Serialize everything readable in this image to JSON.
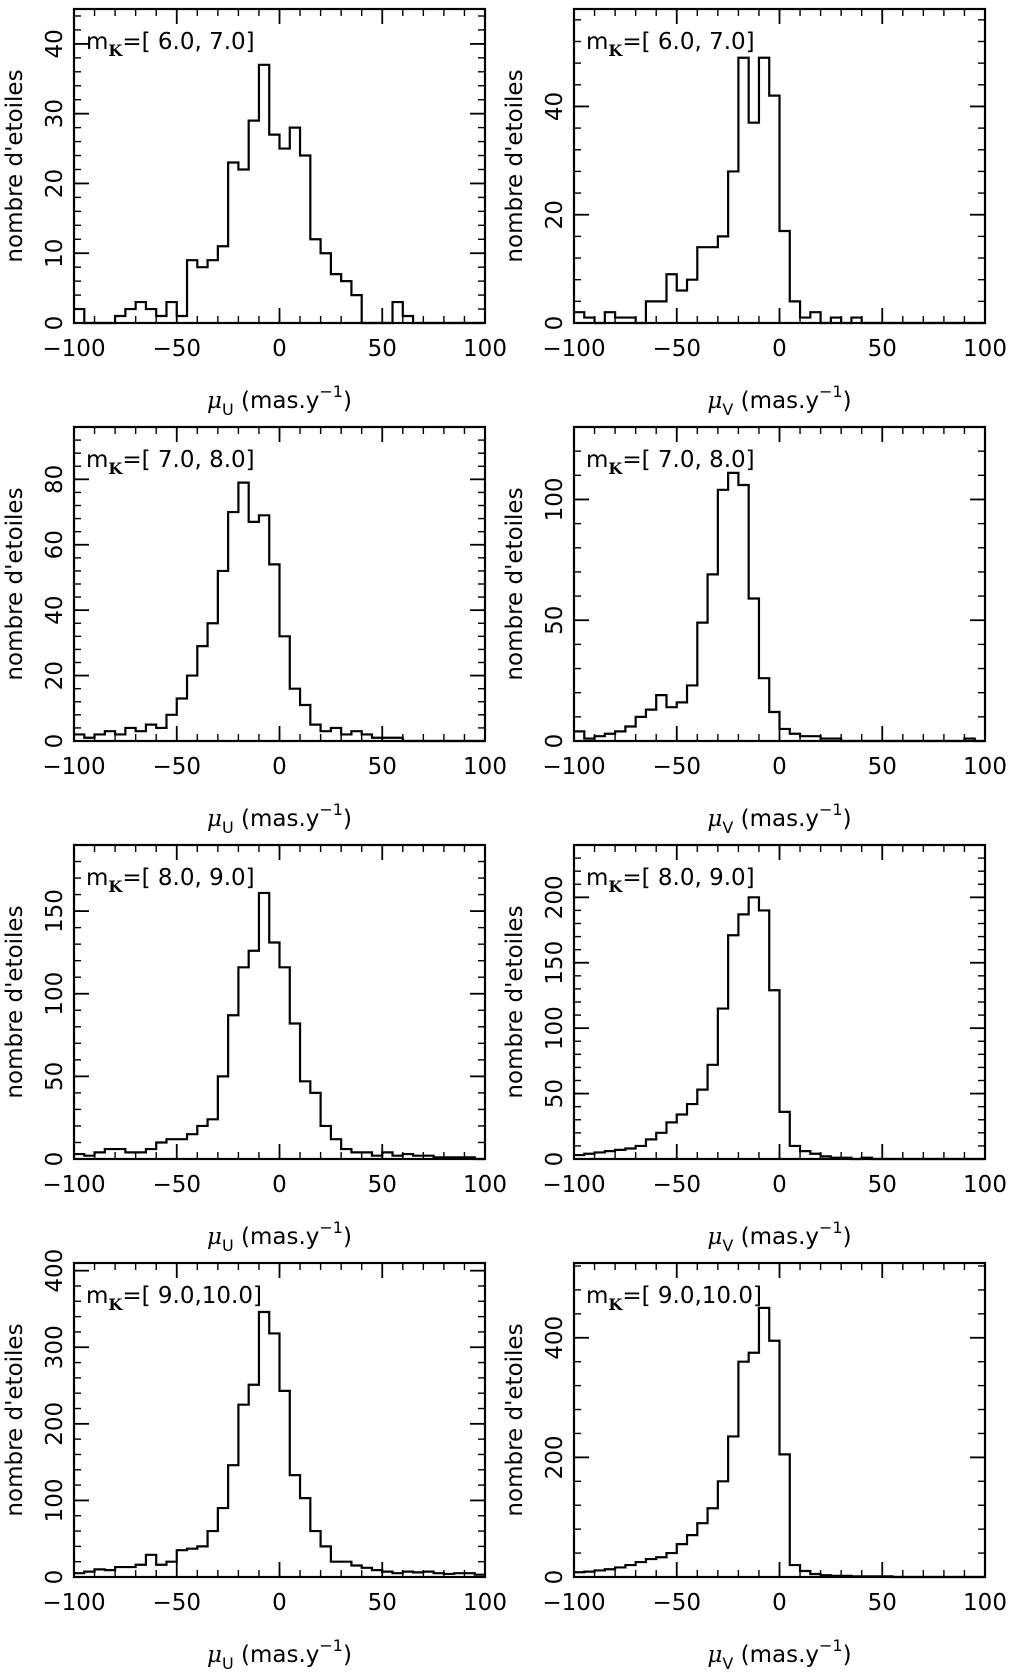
{
  "chart_data": [
    {
      "type": "histogram",
      "annotation": "m",
      "annotation_sub": "K",
      "annotation_range": "=[ 6.0, 7.0]",
      "xlabel_symbol": "μ",
      "xlabel_sub": "U",
      "xlabel_unit": " (mas.y",
      "xlabel_sup": "−1",
      "xlabel_close": ")",
      "ylabel": "nombre d'etoiles",
      "xlim": [
        -100,
        100
      ],
      "ylim": [
        0,
        45
      ],
      "xticks": [
        -100,
        -50,
        0,
        50,
        100
      ],
      "xtick_labels": [
        "−100",
        "−50",
        "0",
        "50",
        "100"
      ],
      "yticks": [
        0,
        10,
        20,
        30,
        40
      ],
      "ytick_labels": [
        "0",
        "10",
        "20",
        "30",
        "40"
      ],
      "bin_start": -100,
      "bin_width": 5,
      "values": [
        2,
        0,
        0,
        0,
        1,
        2,
        3,
        2,
        1,
        3,
        1,
        9,
        8,
        9,
        11,
        23,
        22,
        29,
        37,
        27,
        25,
        28,
        24,
        12,
        10,
        7,
        6,
        4,
        0,
        0,
        0,
        3,
        1,
        0,
        0,
        0,
        0,
        0,
        0,
        0
      ]
    },
    {
      "type": "histogram",
      "annotation": "m",
      "annotation_sub": "K",
      "annotation_range": "=[ 6.0, 7.0]",
      "xlabel_symbol": "μ",
      "xlabel_sub": "V",
      "xlabel_unit": " (mas.y",
      "xlabel_sup": "−1",
      "xlabel_close": ")",
      "ylabel": "nombre d'etoiles",
      "xlim": [
        -100,
        100
      ],
      "ylim": [
        0,
        58
      ],
      "xticks": [
        -100,
        -50,
        0,
        50,
        100
      ],
      "xtick_labels": [
        "−100",
        "−50",
        "0",
        "50",
        "100"
      ],
      "yticks": [
        0,
        20,
        40
      ],
      "ytick_labels": [
        "0",
        "20",
        "40"
      ],
      "bin_start": -100,
      "bin_width": 5,
      "values": [
        2,
        1,
        0,
        2,
        1,
        1,
        0,
        4,
        4,
        9,
        6,
        8,
        14,
        14,
        16,
        28,
        49,
        37,
        49,
        42,
        17,
        4,
        1,
        2,
        0,
        1,
        0,
        1,
        0,
        0,
        0,
        0,
        0,
        0,
        0,
        0,
        0,
        0,
        0,
        0
      ]
    },
    {
      "type": "histogram",
      "annotation": "m",
      "annotation_sub": "K",
      "annotation_range": "=[ 7.0, 8.0]",
      "xlabel_symbol": "μ",
      "xlabel_sub": "U",
      "xlabel_unit": " (mas.y",
      "xlabel_sup": "−1",
      "xlabel_close": ")",
      "ylabel": "nombre d'etoiles",
      "xlim": [
        -100,
        100
      ],
      "ylim": [
        0,
        96
      ],
      "xticks": [
        -100,
        -50,
        0,
        50,
        100
      ],
      "xtick_labels": [
        "−100",
        "−50",
        "0",
        "50",
        "100"
      ],
      "yticks": [
        0,
        20,
        40,
        60,
        80
      ],
      "ytick_labels": [
        "0",
        "20",
        "40",
        "60",
        "80"
      ],
      "bin_start": -100,
      "bin_width": 5,
      "values": [
        2,
        1,
        2,
        3,
        2,
        4,
        3,
        5,
        4,
        8,
        13,
        20,
        29,
        36,
        52,
        70,
        79,
        67,
        69,
        54,
        32,
        16,
        11,
        5,
        3,
        4,
        2,
        3,
        2,
        1,
        1,
        1,
        0,
        0,
        0,
        0,
        0,
        0,
        0,
        0
      ]
    },
    {
      "type": "histogram",
      "annotation": "m",
      "annotation_sub": "K",
      "annotation_range": "=[ 7.0, 8.0]",
      "xlabel_symbol": "μ",
      "xlabel_sub": "V",
      "xlabel_unit": " (mas.y",
      "xlabel_sup": "−1",
      "xlabel_close": ")",
      "ylabel": "nombre d'etoiles",
      "xlim": [
        -100,
        100
      ],
      "ylim": [
        0,
        130
      ],
      "xticks": [
        -100,
        -50,
        0,
        50,
        100
      ],
      "xtick_labels": [
        "−100",
        "−50",
        "0",
        "50",
        "100"
      ],
      "yticks": [
        0,
        50,
        100
      ],
      "ytick_labels": [
        "0",
        "50",
        "100"
      ],
      "bin_start": -100,
      "bin_width": 5,
      "values": [
        4,
        1,
        2,
        3,
        4,
        6,
        10,
        13,
        19,
        14,
        16,
        23,
        49,
        69,
        104,
        111,
        106,
        59,
        26,
        12,
        5,
        3,
        2,
        2,
        1,
        1,
        0,
        0,
        0,
        0,
        0,
        0,
        0,
        0,
        0,
        0,
        0,
        0,
        1,
        0
      ]
    },
    {
      "type": "histogram",
      "annotation": "m",
      "annotation_sub": "K",
      "annotation_range": "=[ 8.0, 9.0]",
      "xlabel_symbol": "μ",
      "xlabel_sub": "U",
      "xlabel_unit": " (mas.y",
      "xlabel_sup": "−1",
      "xlabel_close": ")",
      "ylabel": "nombre d'etoiles",
      "xlim": [
        -100,
        100
      ],
      "ylim": [
        0,
        190
      ],
      "xticks": [
        -100,
        -50,
        0,
        50,
        100
      ],
      "xtick_labels": [
        "−100",
        "−50",
        "0",
        "50",
        "100"
      ],
      "yticks": [
        0,
        50,
        100,
        150
      ],
      "ytick_labels": [
        "0",
        "50",
        "100",
        "150"
      ],
      "bin_start": -100,
      "bin_width": 5,
      "values": [
        3,
        2,
        4,
        6,
        6,
        4,
        4,
        6,
        10,
        12,
        12,
        15,
        20,
        24,
        50,
        87,
        116,
        126,
        161,
        131,
        116,
        82,
        47,
        40,
        20,
        12,
        6,
        4,
        4,
        2,
        4,
        2,
        3,
        2,
        2,
        1,
        1,
        1,
        1,
        0
      ]
    },
    {
      "type": "histogram",
      "annotation": "m",
      "annotation_sub": "K",
      "annotation_range": "=[ 8.0, 9.0]",
      "xlabel_symbol": "μ",
      "xlabel_sub": "V",
      "xlabel_unit": " (mas.y",
      "xlabel_sup": "−1",
      "xlabel_close": ")",
      "ylabel": "nombre d'etoiles",
      "xlim": [
        -100,
        100
      ],
      "ylim": [
        0,
        240
      ],
      "xticks": [
        -100,
        -50,
        0,
        50,
        100
      ],
      "xtick_labels": [
        "−100",
        "−50",
        "0",
        "50",
        "100"
      ],
      "yticks": [
        0,
        50,
        100,
        150,
        200
      ],
      "ytick_labels": [
        "0",
        "50",
        "100",
        "150",
        "200"
      ],
      "bin_start": -100,
      "bin_width": 5,
      "values": [
        3,
        4,
        5,
        6,
        7,
        8,
        10,
        15,
        20,
        28,
        34,
        42,
        53,
        72,
        115,
        171,
        187,
        200,
        190,
        129,
        36,
        10,
        6,
        4,
        2,
        1,
        1,
        0,
        1,
        0,
        0,
        0,
        0,
        0,
        0,
        0,
        0,
        0,
        0,
        0
      ]
    },
    {
      "type": "histogram",
      "annotation": "m",
      "annotation_sub": "K",
      "annotation_range": "=[ 9.0,10.0]",
      "xlabel_symbol": "μ",
      "xlabel_sub": "U",
      "xlabel_unit": " (mas.y",
      "xlabel_sup": "−1",
      "xlabel_close": ")",
      "ylabel": "nombre d'etoiles",
      "xlim": [
        -100,
        100
      ],
      "ylim": [
        0,
        410
      ],
      "xticks": [
        -100,
        -50,
        0,
        50,
        100
      ],
      "xtick_labels": [
        "−100",
        "−50",
        "0",
        "50",
        "100"
      ],
      "yticks": [
        0,
        100,
        200,
        300,
        400
      ],
      "ytick_labels": [
        "0",
        "100",
        "200",
        "300",
        "400"
      ],
      "bin_start": -100,
      "bin_width": 5,
      "values": [
        5,
        7,
        10,
        9,
        13,
        13,
        16,
        29,
        16,
        20,
        35,
        37,
        40,
        60,
        90,
        146,
        225,
        251,
        346,
        318,
        243,
        133,
        103,
        60,
        40,
        20,
        20,
        15,
        12,
        9,
        7,
        5,
        7,
        6,
        7,
        5,
        4,
        5,
        5,
        3
      ]
    },
    {
      "type": "histogram",
      "annotation": "m",
      "annotation_sub": "K",
      "annotation_range": "=[ 9.0,10.0]",
      "xlabel_symbol": "μ",
      "xlabel_sub": "V",
      "xlabel_unit": " (mas.y",
      "xlabel_sup": "−1",
      "xlabel_close": ")",
      "ylabel": "nombre d'etoiles",
      "xlim": [
        -100,
        100
      ],
      "ylim": [
        0,
        525
      ],
      "xticks": [
        -100,
        -50,
        0,
        50,
        100
      ],
      "xtick_labels": [
        "−100",
        "−50",
        "0",
        "50",
        "100"
      ],
      "yticks": [
        0,
        200,
        400
      ],
      "ytick_labels": [
        "0",
        "200",
        "400"
      ],
      "bin_start": -100,
      "bin_width": 5,
      "values": [
        8,
        9,
        11,
        13,
        16,
        20,
        25,
        30,
        33,
        40,
        55,
        70,
        90,
        115,
        160,
        235,
        360,
        375,
        450,
        395,
        205,
        20,
        10,
        5,
        3,
        2,
        2,
        1,
        1,
        1,
        1,
        0,
        0,
        0,
        0,
        0,
        0,
        0,
        0,
        0
      ]
    }
  ]
}
